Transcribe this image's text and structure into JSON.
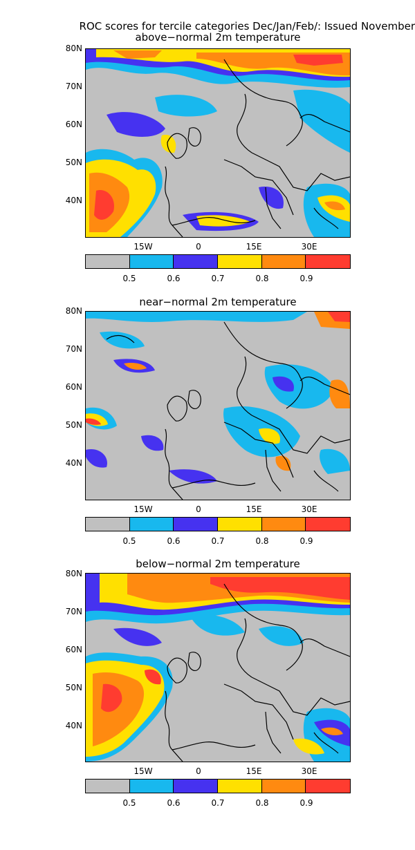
{
  "title": "ROC scores for tercile categories Dec/Jan/Feb/: Issued November",
  "panels": [
    {
      "title": "above−normal 2m temperature"
    },
    {
      "title": "near−normal 2m temperature"
    },
    {
      "title": "below−normal 2m temperature"
    }
  ],
  "lat_labels": [
    "80N",
    "70N",
    "60N",
    "50N",
    "40N"
  ],
  "lon_labels": [
    "15W",
    "0",
    "15E",
    "30E"
  ],
  "colorbar": {
    "labels": [
      "0.5",
      "0.6",
      "0.7",
      "0.8",
      "0.9"
    ],
    "colors": [
      "#c0c0c0",
      "#18b8ee",
      "#4632f0",
      "#ffe000",
      "#ff8a10",
      "#ff3c30"
    ]
  },
  "colors": {
    "land_ocean_low": "#c0c0c0",
    "coastline": "#000000"
  }
}
